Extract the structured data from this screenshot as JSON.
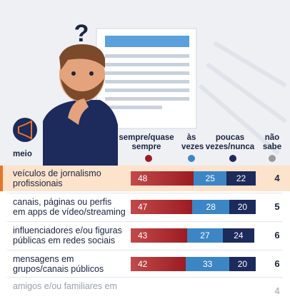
{
  "chart_data": {
    "type": "bar",
    "orientation": "horizontal",
    "stacked": true,
    "category_header": "meio",
    "categories": [
      "veículos de jornalismo profissionais",
      "canais, páginas ou perfis em apps de vídeo/streaming",
      "influenciadores e/ou figuras públicas em redes sociais",
      "mensagens em grupos/canais públicos",
      "amigos e/ou familiares em"
    ],
    "series": [
      {
        "name": "sempre/quase sempre",
        "color": "#9b1c22",
        "values": [
          48,
          47,
          43,
          42,
          null
        ]
      },
      {
        "name": "às vezes",
        "color": "#3d86c6",
        "values": [
          25,
          28,
          27,
          33,
          null
        ]
      },
      {
        "name": "poucas vezes/nunca",
        "color": "#1c2a5c",
        "values": [
          22,
          20,
          24,
          20,
          null
        ]
      },
      {
        "name": "não sabe",
        "color": "#9a9a9a",
        "values": [
          4,
          5,
          6,
          6,
          4
        ]
      }
    ]
  }
}
